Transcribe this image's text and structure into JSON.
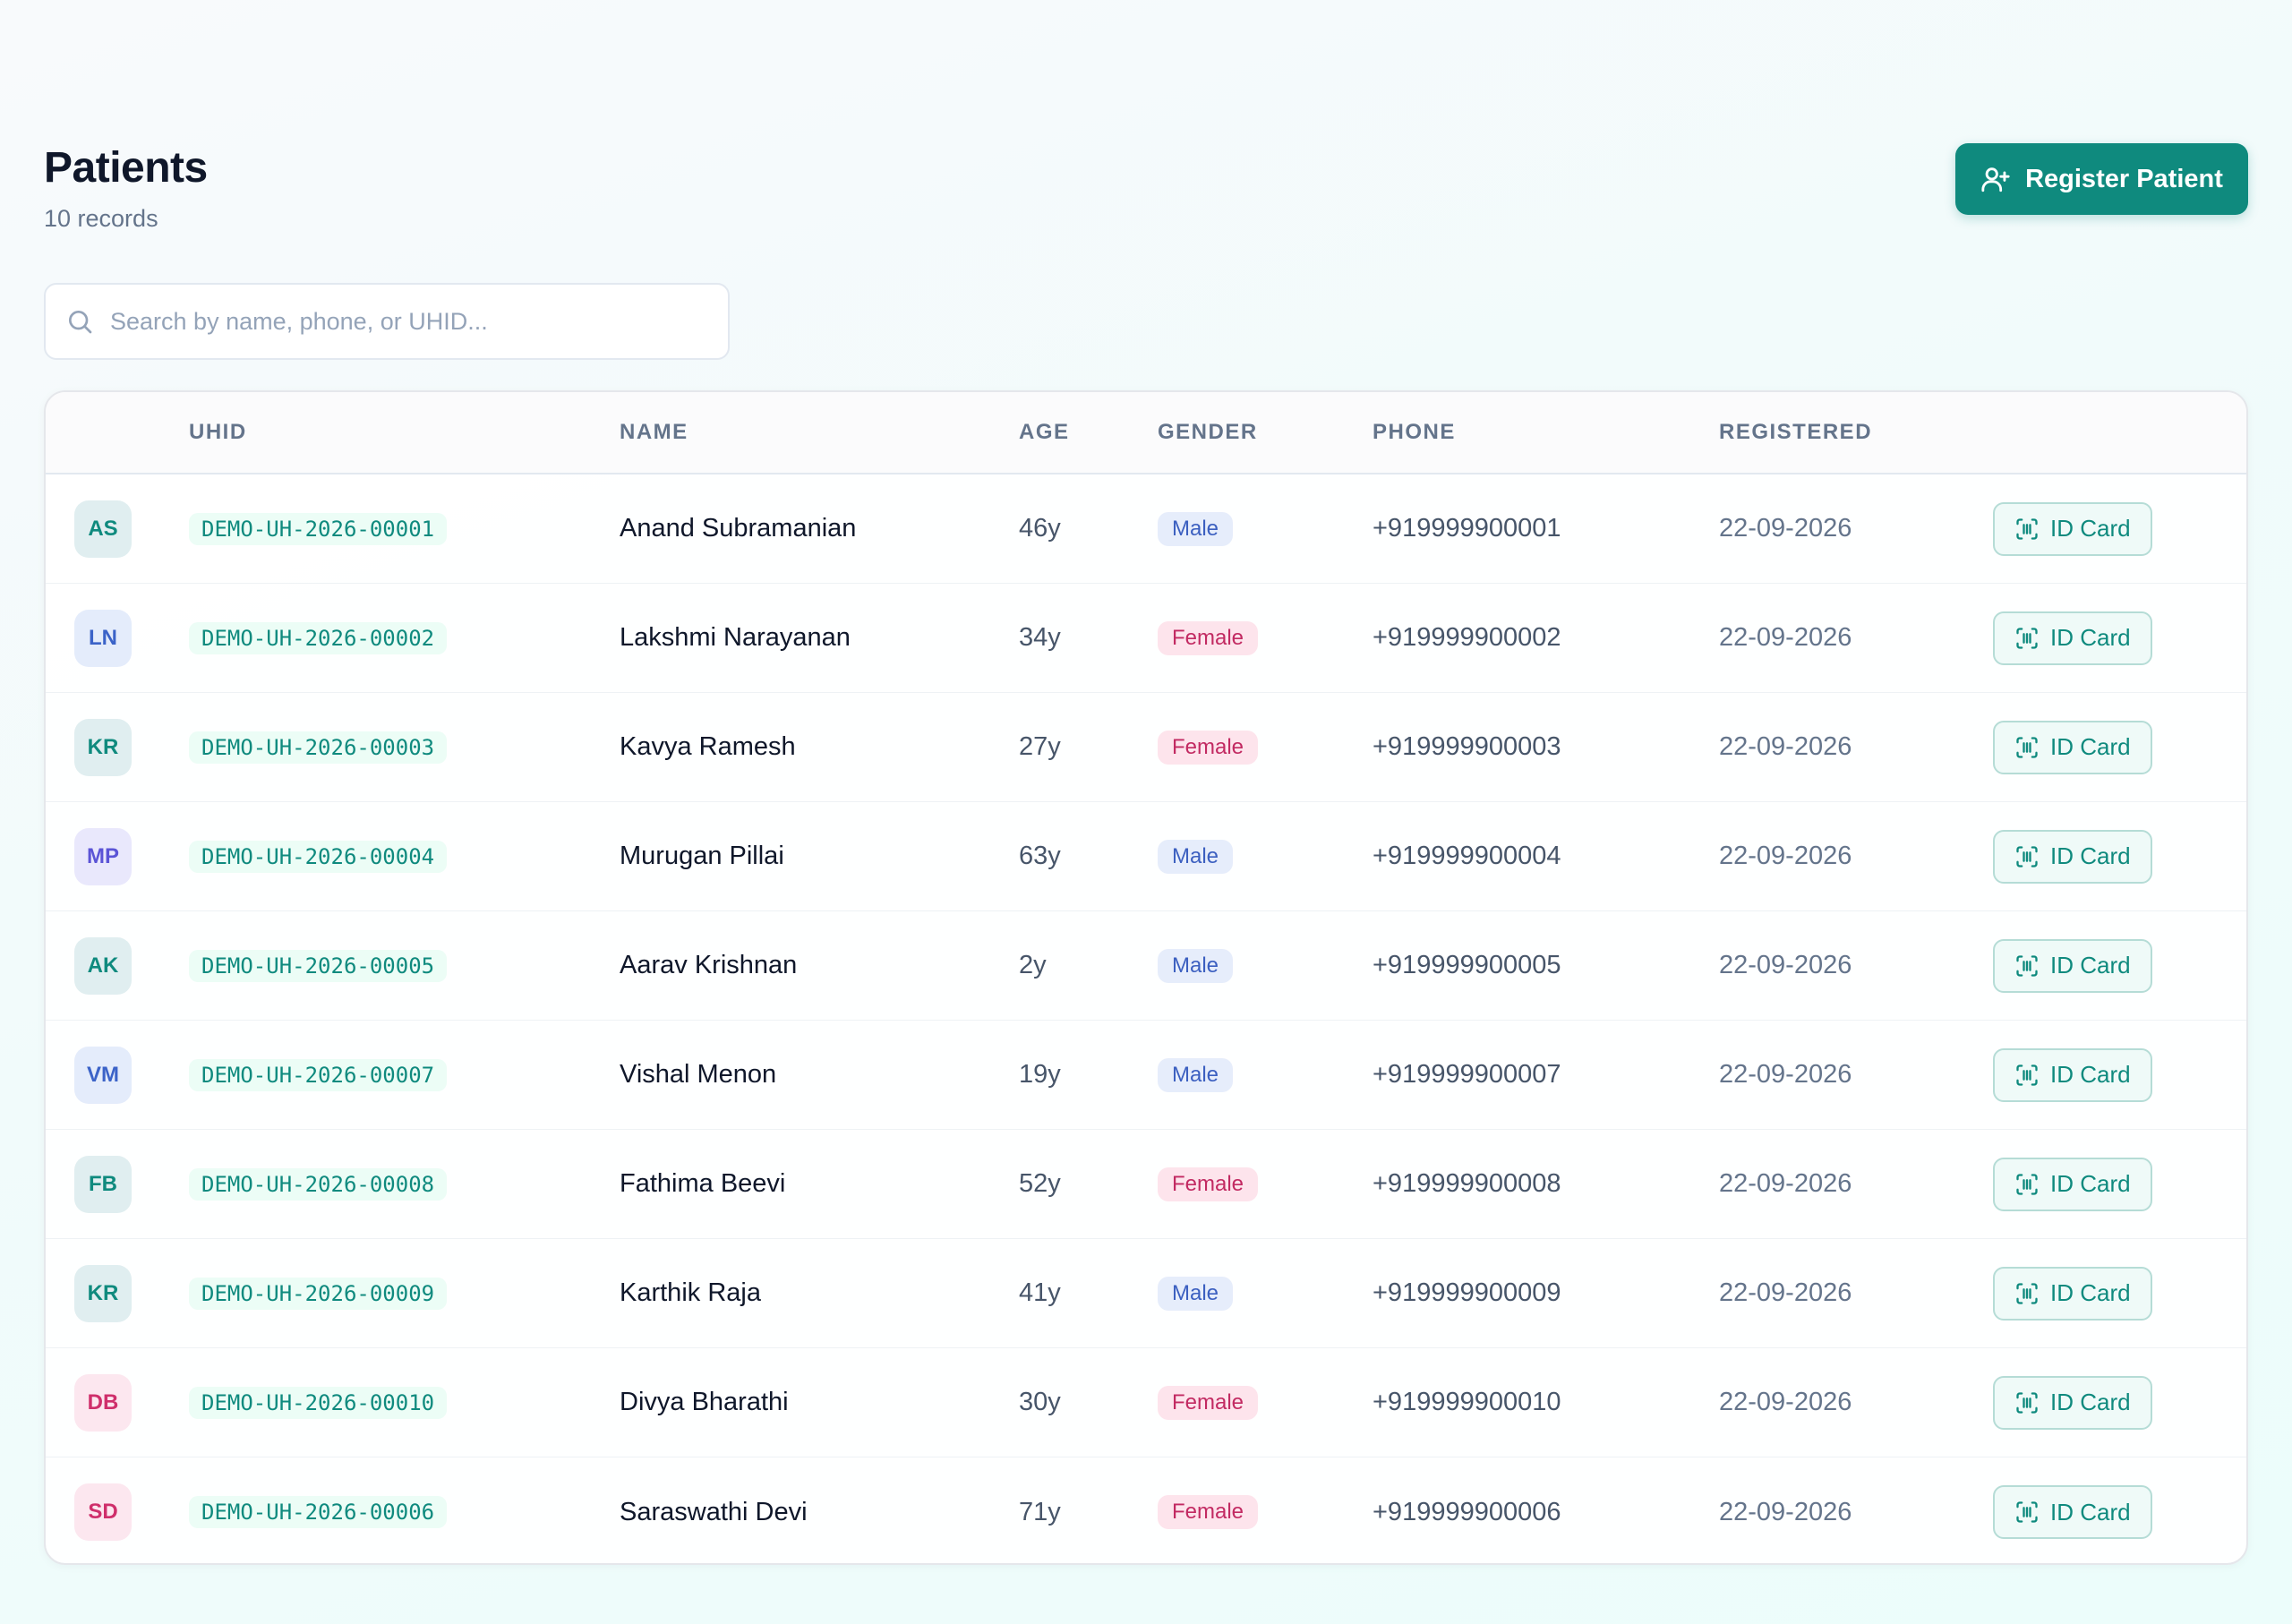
{
  "header": {
    "title": "Patients",
    "record_count": "10 records",
    "register_label": "Register Patient"
  },
  "search": {
    "placeholder": "Search by name, phone, or UHID...",
    "value": ""
  },
  "table": {
    "columns": {
      "uhid": "UHID",
      "name": "NAME",
      "age": "AGE",
      "gender": "GENDER",
      "phone": "PHONE",
      "registered": "REGISTERED"
    },
    "action_label": "ID Card",
    "rows": [
      {
        "initials": "AS",
        "uhid": "DEMO-UH-2026-00001",
        "name": "Anand Subramanian",
        "age": "46y",
        "gender": "Male",
        "phone": "+919999900001",
        "registered": "22-09-2026"
      },
      {
        "initials": "LN",
        "uhid": "DEMO-UH-2026-00002",
        "name": "Lakshmi Narayanan",
        "age": "34y",
        "gender": "Female",
        "phone": "+919999900002",
        "registered": "22-09-2026"
      },
      {
        "initials": "KR",
        "uhid": "DEMO-UH-2026-00003",
        "name": "Kavya Ramesh",
        "age": "27y",
        "gender": "Female",
        "phone": "+919999900003",
        "registered": "22-09-2026"
      },
      {
        "initials": "MP",
        "uhid": "DEMO-UH-2026-00004",
        "name": "Murugan Pillai",
        "age": "63y",
        "gender": "Male",
        "phone": "+919999900004",
        "registered": "22-09-2026"
      },
      {
        "initials": "AK",
        "uhid": "DEMO-UH-2026-00005",
        "name": "Aarav Krishnan",
        "age": "2y",
        "gender": "Male",
        "phone": "+919999900005",
        "registered": "22-09-2026"
      },
      {
        "initials": "VM",
        "uhid": "DEMO-UH-2026-00007",
        "name": "Vishal Menon",
        "age": "19y",
        "gender": "Male",
        "phone": "+919999900007",
        "registered": "22-09-2026"
      },
      {
        "initials": "FB",
        "uhid": "DEMO-UH-2026-00008",
        "name": "Fathima Beevi",
        "age": "52y",
        "gender": "Female",
        "phone": "+919999900008",
        "registered": "22-09-2026"
      },
      {
        "initials": "KR",
        "uhid": "DEMO-UH-2026-00009",
        "name": "Karthik Raja",
        "age": "41y",
        "gender": "Male",
        "phone": "+919999900009",
        "registered": "22-09-2026"
      },
      {
        "initials": "DB",
        "uhid": "DEMO-UH-2026-00010",
        "name": "Divya Bharathi",
        "age": "30y",
        "gender": "Female",
        "phone": "+919999900010",
        "registered": "22-09-2026"
      },
      {
        "initials": "SD",
        "uhid": "DEMO-UH-2026-00006",
        "name": "Saraswathi Devi",
        "age": "71y",
        "gender": "Female",
        "phone": "+919999900006",
        "registered": "22-09-2026"
      }
    ]
  },
  "colors": {
    "accent": "#0f8a7e",
    "male_badge": "#3b5fc0",
    "female_badge": "#c22a62"
  },
  "icons": {
    "register": "user-plus-icon",
    "search": "search-icon",
    "id_card": "scan-id-icon"
  }
}
